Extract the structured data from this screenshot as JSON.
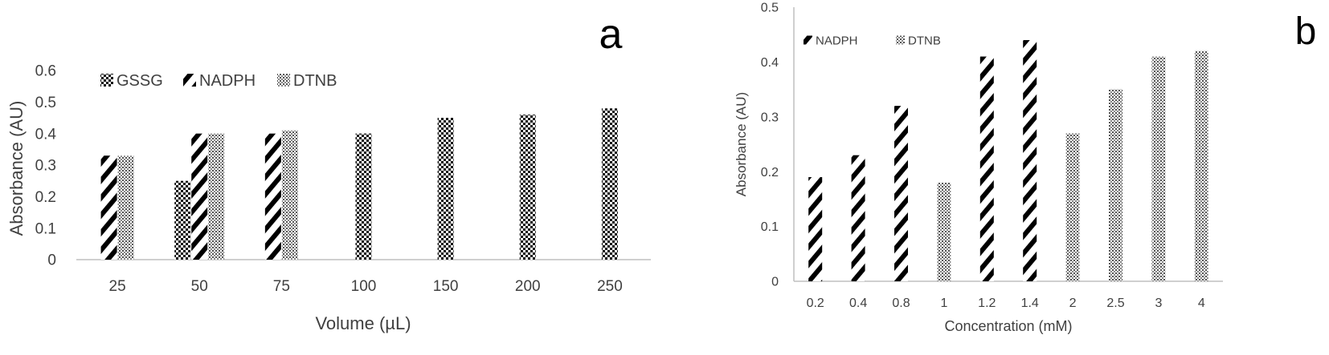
{
  "chart_data": [
    {
      "type": "bar",
      "panel_label": "a",
      "xlabel": "Volume (µL)",
      "ylabel": "Absorbance (AU)",
      "ylim": [
        0,
        0.6
      ],
      "yticks": [
        "0",
        "0.1",
        "0.2",
        "0.3",
        "0.4",
        "0.5",
        "0.6"
      ],
      "categories": [
        "25",
        "50",
        "75",
        "100",
        "150",
        "200",
        "250"
      ],
      "legend_position": "top-left",
      "series": [
        {
          "name": "GSSG",
          "pattern": "checker",
          "values": [
            null,
            0.25,
            null,
            0.4,
            0.45,
            0.46,
            0.48
          ]
        },
        {
          "name": "NADPH",
          "pattern": "diagonal",
          "values": [
            0.33,
            0.4,
            0.4,
            null,
            null,
            null,
            null
          ]
        },
        {
          "name": "DTNB",
          "pattern": "dots",
          "values": [
            0.33,
            0.4,
            0.41,
            null,
            null,
            null,
            null
          ]
        }
      ]
    },
    {
      "type": "bar",
      "panel_label": "b",
      "xlabel": "Concentration  (mM)",
      "ylabel": "Absorbance (AU)",
      "ylim": [
        0,
        0.5
      ],
      "yticks": [
        "0",
        "0.1",
        "0.2",
        "0.3",
        "0.4",
        "0.5"
      ],
      "categories": [
        "0.2",
        "0.4",
        "0.8",
        "1",
        "1.2",
        "1.4",
        "2",
        "2.5",
        "3",
        "4"
      ],
      "legend_position": "top-left",
      "series": [
        {
          "name": "NADPH",
          "pattern": "diagonal",
          "values": [
            0.19,
            0.23,
            0.32,
            null,
            0.41,
            0.44,
            null,
            null,
            null,
            null
          ]
        },
        {
          "name": "DTNB",
          "pattern": "dots",
          "values": [
            null,
            null,
            null,
            0.18,
            null,
            null,
            0.27,
            0.35,
            0.41,
            0.42
          ]
        }
      ]
    }
  ],
  "colors": {
    "text": "#404040",
    "axis": "#bfbfbf",
    "bar_fill": "#000000"
  }
}
